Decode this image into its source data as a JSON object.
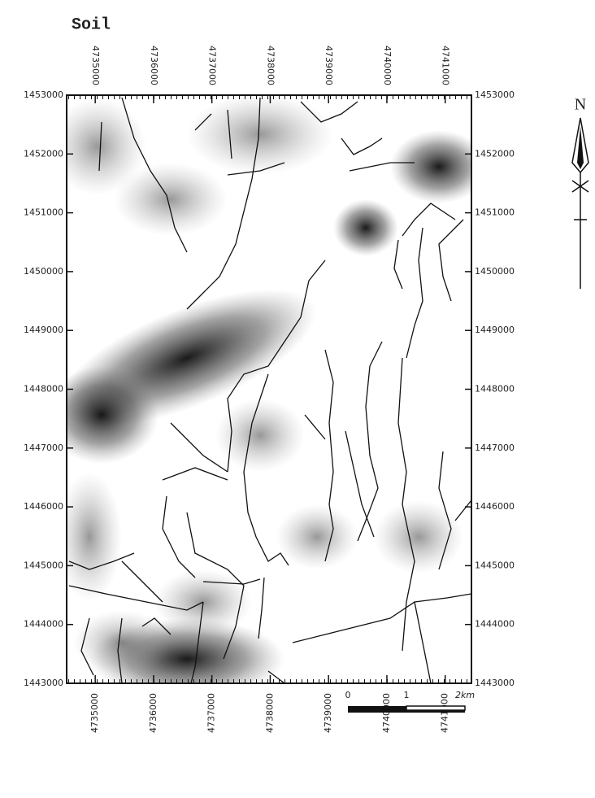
{
  "title": "Soil",
  "xlim": [
    4734510,
    4741450
  ],
  "ylim": [
    1443000,
    1453000
  ],
  "x_ticks": [
    4735000,
    4736000,
    4737000,
    4738000,
    4739000,
    4740000,
    4741000
  ],
  "y_ticks": [
    1453000,
    1452000,
    1451000,
    1450000,
    1449000,
    1448000,
    1447000,
    1446000,
    1445000,
    1444000,
    1443000
  ],
  "north": "N",
  "scale_bar": [
    "0",
    "1",
    "2km"
  ]
}
